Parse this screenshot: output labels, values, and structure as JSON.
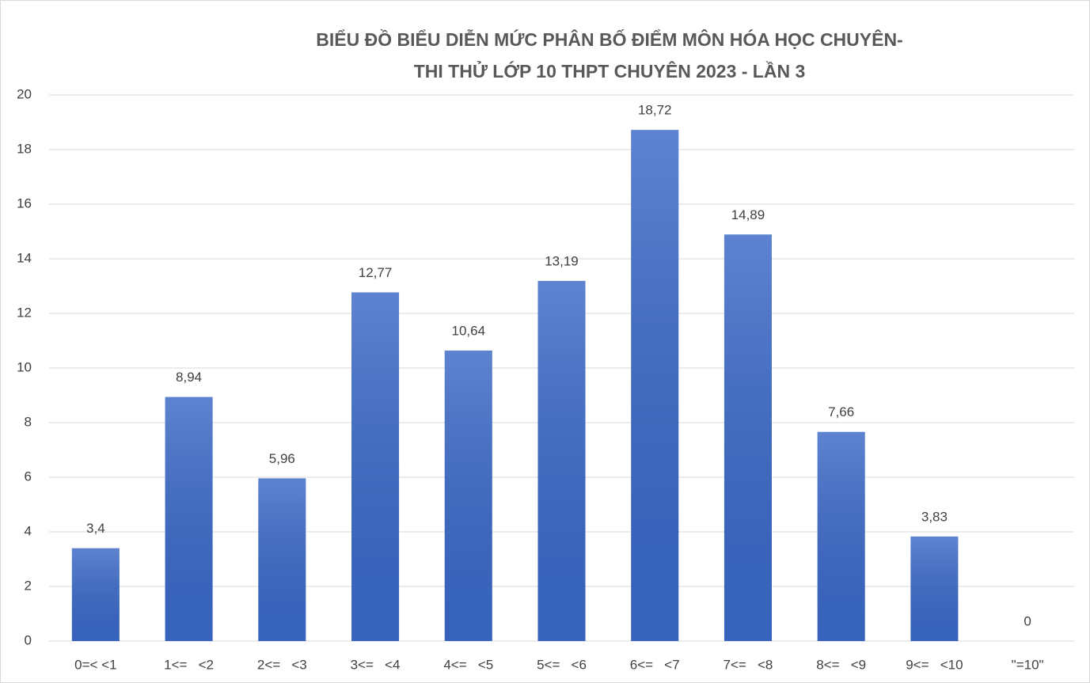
{
  "chart_data": {
    "type": "bar",
    "title": [
      "BIỂU ĐỒ BIỂU DIỄN MỨC PHÂN BỐ ĐIỂM MÔN HÓA HỌC CHUYÊN-",
      "THI THỬ LỚP 10 THPT CHUYÊN 2023 - LẦN 3"
    ],
    "categories": [
      "0=< <1",
      "1<=   <2",
      "2<=   <3",
      "3<=   <4",
      "4<=   <5",
      "5<=   <6",
      "6<=   <7",
      "7<=   <8",
      "8<=   <9",
      "9<=   <10",
      "\"=10\""
    ],
    "values": [
      3.4,
      8.94,
      5.96,
      12.77,
      10.64,
      13.19,
      18.72,
      14.89,
      7.66,
      3.83,
      0
    ],
    "value_labels": [
      "3,4",
      "8,94",
      "5,96",
      "12,77",
      "10,64",
      "13,19",
      "18,72",
      "14,89",
      "7,66",
      "3,83",
      "0"
    ],
    "color": "#3a68c6",
    "ylim": [
      0,
      20
    ],
    "yticks": [
      0,
      2,
      4,
      6,
      8,
      10,
      12,
      14,
      16,
      18,
      20
    ],
    "grid": true
  }
}
